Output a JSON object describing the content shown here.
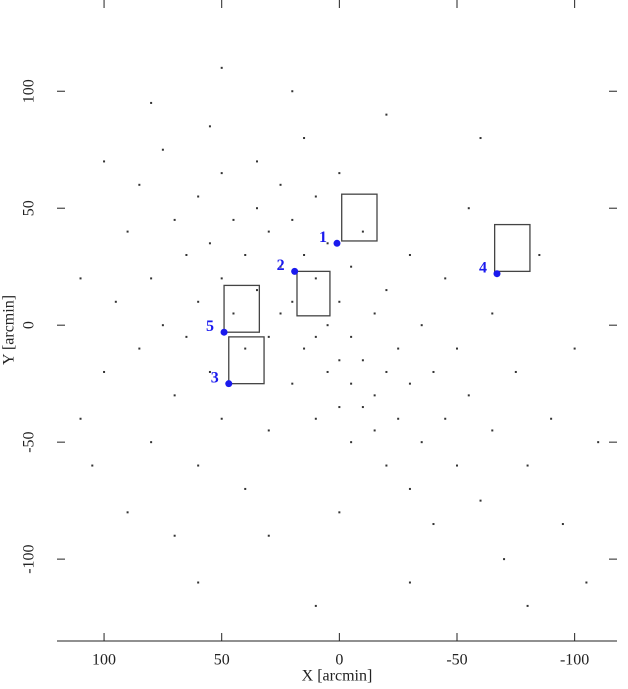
{
  "chart_data": {
    "type": "scatter",
    "xlabel": "X [arcmin]",
    "ylabel": "Y [arcmin]",
    "xlim": [
      120,
      -118
    ],
    "ylim": [
      -135,
      139
    ],
    "xticks": [
      100,
      50,
      0,
      -50,
      -100
    ],
    "yticks": [
      -100,
      -50,
      0,
      50,
      100
    ],
    "stars": {
      "color": "#333333",
      "x": [
        110,
        105,
        100,
        95,
        90,
        90,
        85,
        85,
        80,
        80,
        75,
        75,
        70,
        70,
        70,
        65,
        65,
        60,
        60,
        60,
        55,
        55,
        55,
        50,
        50,
        50,
        45,
        45,
        40,
        40,
        40,
        35,
        35,
        35,
        30,
        30,
        30,
        25,
        25,
        25,
        20,
        20,
        20,
        15,
        15,
        15,
        10,
        10,
        10,
        10,
        5,
        5,
        5,
        0,
        0,
        0,
        0,
        -5,
        -5,
        -5,
        -5,
        -10,
        -10,
        -10,
        -15,
        -15,
        -15,
        -20,
        -20,
        -20,
        -25,
        -25,
        -30,
        -30,
        -30,
        -35,
        -35,
        -40,
        -40,
        -45,
        -45,
        -50,
        -50,
        -55,
        -55,
        -60,
        -65,
        -65,
        -70,
        -75,
        -80,
        -85,
        -90,
        -95,
        -100,
        -105,
        -110,
        -60,
        -20,
        20,
        50,
        80,
        100,
        110,
        0,
        30,
        -30,
        10,
        60,
        -80
      ],
      "y": [
        -40,
        -60,
        -20,
        10,
        40,
        -80,
        60,
        -10,
        20,
        -50,
        75,
        0,
        45,
        -30,
        -90,
        30,
        -5,
        55,
        10,
        -60,
        85,
        35,
        -20,
        65,
        20,
        -40,
        45,
        5,
        30,
        -10,
        -70,
        70,
        50,
        15,
        40,
        -5,
        -45,
        60,
        25,
        5,
        45,
        10,
        -25,
        80,
        30,
        -10,
        55,
        20,
        -5,
        -40,
        35,
        0,
        -20,
        65,
        10,
        -15,
        -35,
        25,
        -5,
        -25,
        -50,
        40,
        -15,
        -35,
        5,
        -30,
        -45,
        15,
        -20,
        -60,
        -10,
        -40,
        30,
        -25,
        -70,
        0,
        -50,
        -20,
        -85,
        20,
        -40,
        -10,
        -60,
        50,
        -30,
        -75,
        5,
        -45,
        -100,
        -20,
        -60,
        30,
        -40,
        -85,
        -10,
        -110,
        -50,
        80,
        90,
        100,
        110,
        95,
        70,
        20,
        -80,
        -90,
        -110,
        -120,
        -110,
        -120
      ]
    },
    "fields": {
      "color": "#1a1aee",
      "labels": [
        "1",
        "2",
        "3",
        "4",
        "5"
      ],
      "x": [
        1,
        19,
        47,
        -67,
        49
      ],
      "y": [
        35,
        23,
        -25,
        22,
        -3
      ]
    },
    "boxes": [
      {
        "xlim": [
          -1,
          -16
        ],
        "ylim": [
          36,
          56
        ]
      },
      {
        "xlim": [
          18,
          4
        ],
        "ylim": [
          4,
          23
        ]
      },
      {
        "xlim": [
          47,
          32
        ],
        "ylim": [
          -25,
          -5
        ]
      },
      {
        "xlim": [
          -66,
          -81
        ],
        "ylim": [
          23,
          43
        ]
      },
      {
        "xlim": [
          49,
          34
        ],
        "ylim": [
          -3,
          17
        ]
      }
    ]
  }
}
